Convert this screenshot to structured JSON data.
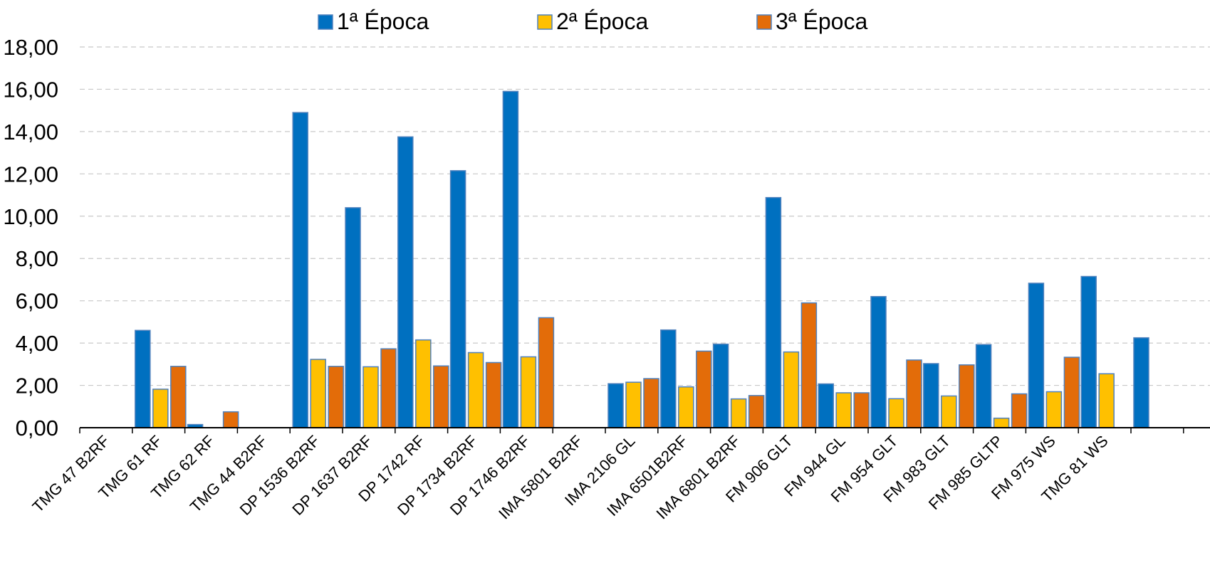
{
  "chart_data": {
    "type": "bar",
    "categories": [
      "TMG 47 B2RF",
      "TMG 61 RF",
      "TMG 62 RF",
      "TMG 44 B2RF",
      "DP 1536 B2RF",
      "DP 1637 B2RF",
      "DP 1742 RF",
      "DP 1734 B2RF",
      "DP 1746 B2RF",
      "IMA 5801 B2RF",
      "IMA 2106 GL",
      "IMA 6501B2RF",
      "IMA 6801 B2RF",
      "FM 906 GLT",
      "FM 944 GL",
      "FM 954 GLT",
      "FM 983 GLT",
      "FM 985 GLTP",
      "FM 975 WS",
      "TMG 81 WS",
      ""
    ],
    "series": [
      {
        "name": "1ª Época",
        "color": "#0070C0",
        "values": [
          0,
          4.6,
          0.15,
          0,
          14.9,
          10.4,
          13.75,
          12.15,
          15.9,
          0,
          2.08,
          4.62,
          3.95,
          10.88,
          2.07,
          6.2,
          3.03,
          3.93,
          6.83,
          7.15,
          4.25
        ]
      },
      {
        "name": "2ª Época",
        "color": "#FFC000",
        "values": [
          0,
          1.82,
          0,
          0,
          3.23,
          2.88,
          4.15,
          3.55,
          3.35,
          0,
          2.15,
          1.93,
          1.36,
          3.58,
          1.65,
          1.37,
          1.5,
          0.45,
          1.7,
          2.55,
          null
        ]
      },
      {
        "name": "3ª Época",
        "color": "#E36C09",
        "values": [
          0,
          2.9,
          0.75,
          0,
          2.9,
          3.73,
          2.92,
          3.08,
          5.2,
          0,
          2.32,
          3.62,
          1.52,
          5.9,
          1.65,
          3.2,
          2.97,
          1.6,
          3.33,
          null,
          null
        ]
      }
    ],
    "yticks": [
      "0,00",
      "2,00",
      "4,00",
      "6,00",
      "8,00",
      "10,00",
      "12,00",
      "14,00",
      "16,00",
      "18,00"
    ],
    "ylim": [
      0,
      18
    ],
    "grid": true,
    "legend": "top-center",
    "title": "",
    "xlabel": "",
    "ylabel": ""
  }
}
